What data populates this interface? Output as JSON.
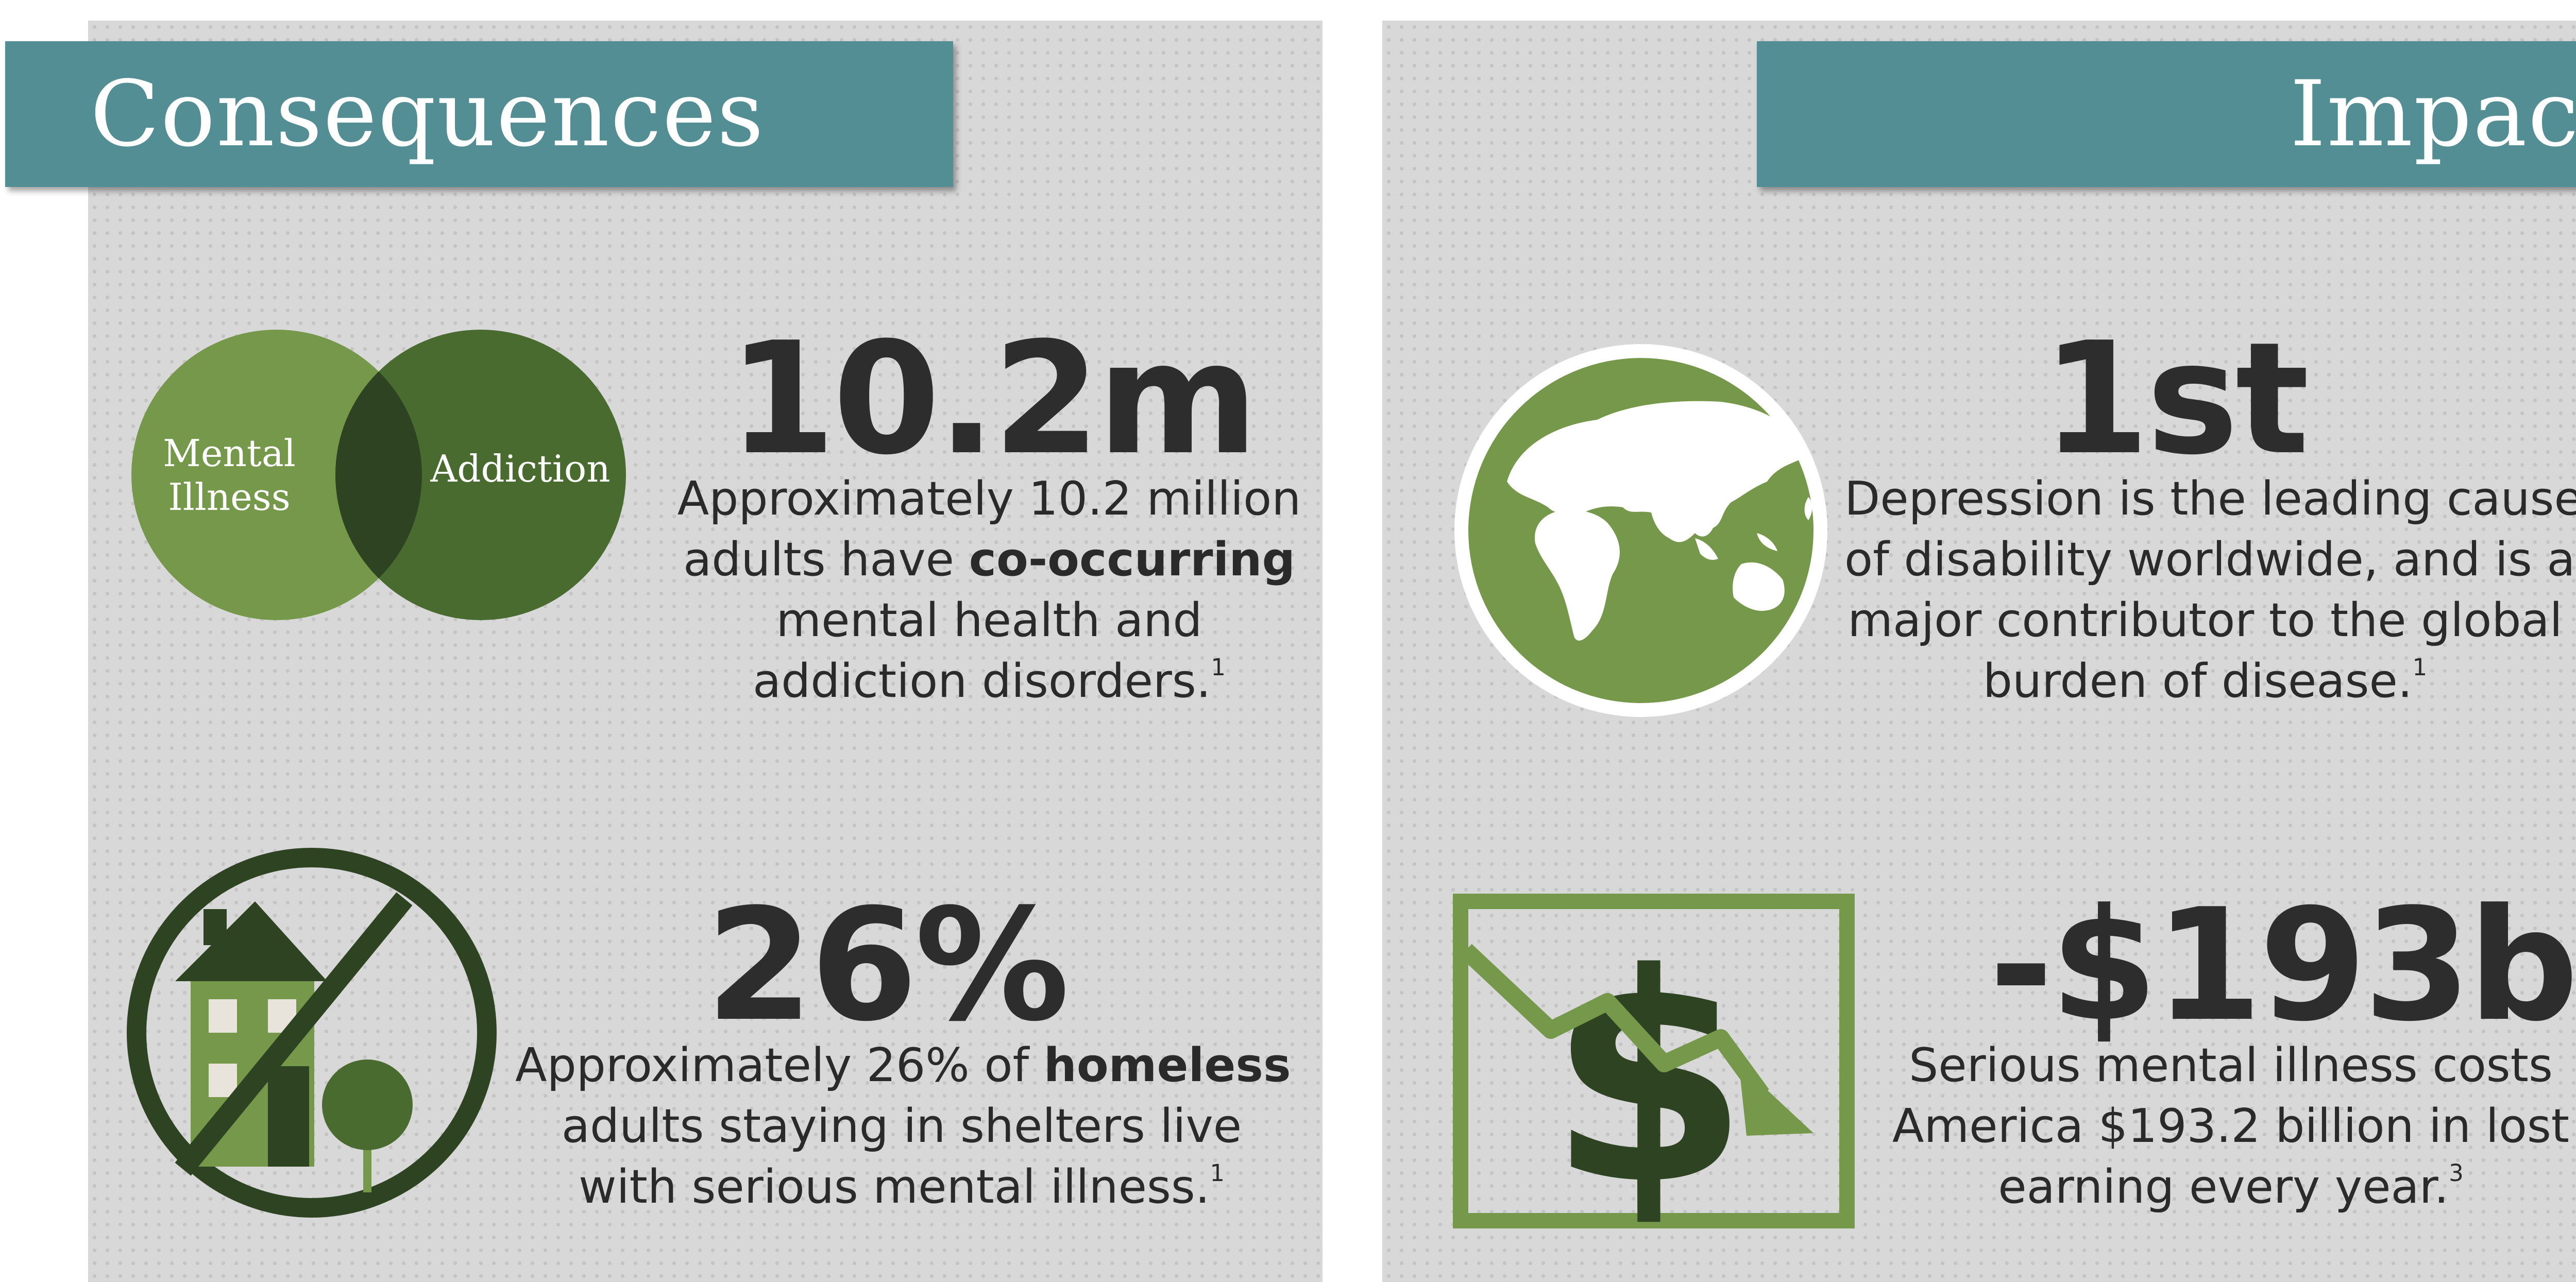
{
  "left_section": {
    "title": "Consequences",
    "items": [
      {
        "stat": "10.2m",
        "icon": "venn-diagram-icon",
        "venn_labels": [
          "Mental",
          "Illness",
          "Addiction"
        ],
        "desc_lines": [
          {
            "text": "Approximately 10.2 million"
          },
          {
            "pre": "adults have ",
            "bold": "co-occurring"
          },
          {
            "text": "mental health and"
          },
          {
            "text": "addiction disorders.",
            "sup": "1"
          }
        ]
      },
      {
        "stat": "26%",
        "icon": "no-house-icon",
        "desc_lines": [
          {
            "pre": "Approximately 26% of ",
            "bold": "homeless"
          },
          {
            "text": "adults staying in shelters live"
          },
          {
            "text": "with serious mental illness.",
            "sup": "1"
          }
        ]
      }
    ]
  },
  "right_section": {
    "title": "Impact",
    "items": [
      {
        "stat": "1st",
        "icon": "globe-icon",
        "desc_lines": [
          {
            "text": "Depression is the leading cause"
          },
          {
            "text": "of disability worldwide, and is a"
          },
          {
            "text": "major contributor to the global"
          },
          {
            "text": "burden of disease.",
            "sup": "1"
          }
        ]
      },
      {
        "stat": "-$193b",
        "icon": "dollar-decline-icon",
        "desc_lines": [
          {
            "text": "Serious mental illness costs"
          },
          {
            "text": "America $193.2 billion in lost"
          },
          {
            "text": "earning every year.",
            "sup": "3"
          }
        ]
      }
    ]
  },
  "colors": {
    "banner": "#528e94",
    "green_light": "#75984a",
    "green_mid": "#4a6b2f",
    "green_dark": "#2d4321",
    "background": "#d8d8d8"
  }
}
